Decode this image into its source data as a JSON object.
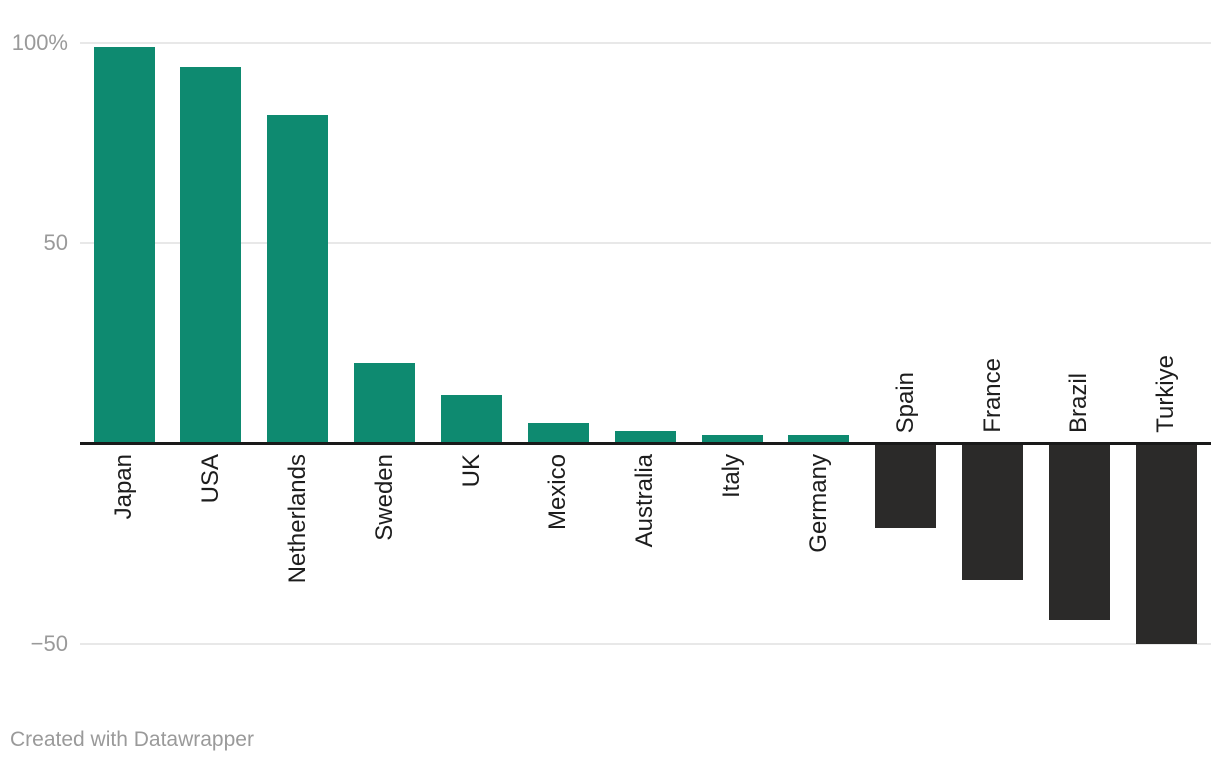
{
  "chart_data": {
    "type": "bar",
    "categories": [
      "Japan",
      "USA",
      "Netherlands",
      "Sweden",
      "UK",
      "Mexico",
      "Australia",
      "Italy",
      "Germany",
      "Spain",
      "France",
      "Brazil",
      "Turkiye"
    ],
    "values": [
      99,
      94,
      82,
      20,
      12,
      5,
      3,
      2,
      2,
      -21,
      -34,
      -44,
      -50
    ],
    "title": "",
    "xlabel": "",
    "ylabel": "",
    "ylim": [
      -50,
      100
    ],
    "grid": true,
    "legend": "none",
    "yticks": [
      {
        "value": 100,
        "label": "100%"
      },
      {
        "value": 50,
        "label": "50"
      },
      {
        "value": -50,
        "label": "−50"
      }
    ],
    "positive_color": "#0e8a70",
    "negative_color": "#2b2a29",
    "axis_color": "#1a1a1a",
    "gridline_color": "#e8e8e8",
    "tick_label_color": "#9a9a9a",
    "category_label_color": "#1d1d1d"
  },
  "footer": {
    "credit": "Created with Datawrapper"
  }
}
